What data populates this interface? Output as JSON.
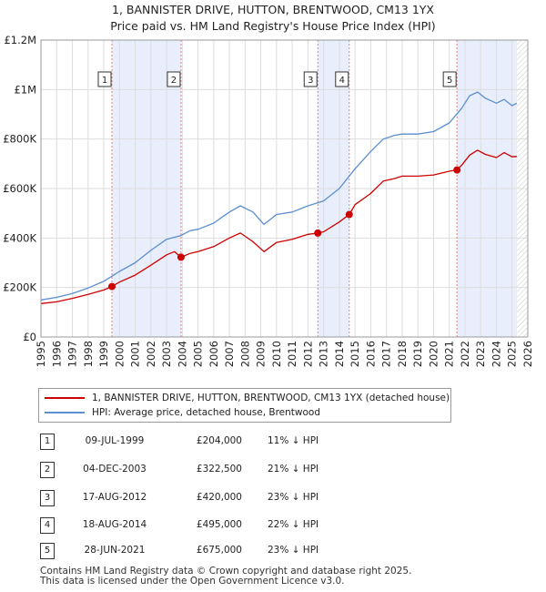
{
  "title_line1": "1, BANNISTER DRIVE, HUTTON, BRENTWOOD, CM13 1YX",
  "title_line2": "Price paid vs. HM Land Registry's House Price Index (HPI)",
  "colors": {
    "price_paid": "#cc0000",
    "hpi": "#5b8fd0",
    "band": "#e8eefb",
    "grid": "#dddddd",
    "vline": "#e08080"
  },
  "chart_data": {
    "type": "line",
    "title": "1, BANNISTER DRIVE, HUTTON, BRENTWOOD, CM13 1YX",
    "subtitle": "Price paid vs. HM Land Registry's House Price Index (HPI)",
    "xlabel": "",
    "ylabel": "",
    "xlim": [
      1995,
      2026
    ],
    "ylim": [
      0,
      1200000
    ],
    "y_tick_values": [
      0,
      200000,
      400000,
      600000,
      800000,
      1000000,
      1200000
    ],
    "y_tick_labels": [
      "£0",
      "£200K",
      "£400K",
      "£600K",
      "£800K",
      "£1M",
      "£1.2M"
    ],
    "x_tick_labels": [
      "1995",
      "1996",
      "1997",
      "1998",
      "1999",
      "2000",
      "2001",
      "2002",
      "2003",
      "2004",
      "2005",
      "2006",
      "2007",
      "2008",
      "2009",
      "2010",
      "2011",
      "2012",
      "2013",
      "2014",
      "2015",
      "2016",
      "2017",
      "2018",
      "2019",
      "2020",
      "2021",
      "2022",
      "2023",
      "2024",
      "2025",
      "2026"
    ],
    "grid": true,
    "shaded_bands": [
      {
        "start": 1999.52,
        "end": 2003.92
      },
      {
        "start": 2012.63,
        "end": 2014.63
      },
      {
        "start": 2021.49,
        "end": 2025.3
      }
    ],
    "hatched_after": 2025.3,
    "series": [
      {
        "name": "1, BANNISTER DRIVE, HUTTON, BRENTWOOD, CM13 1YX (detached house)",
        "x": [
          1995.0,
          1996.0,
          1997.0,
          1998.0,
          1999.0,
          1999.52,
          2000.0,
          2001.0,
          2002.0,
          2003.0,
          2003.5,
          2003.92,
          2004.5,
          2005.0,
          2006.0,
          2007.0,
          2007.7,
          2008.5,
          2009.2,
          2010.0,
          2011.0,
          2012.0,
          2012.63,
          2013.0,
          2014.0,
          2014.63,
          2015.0,
          2016.0,
          2016.8,
          2017.5,
          2018.0,
          2019.0,
          2020.0,
          2021.0,
          2021.49,
          2021.8,
          2022.3,
          2022.8,
          2023.3,
          2024.0,
          2024.5,
          2025.0,
          2025.3
        ],
        "values": [
          135000,
          142000,
          156000,
          172000,
          190000,
          204000,
          222000,
          250000,
          290000,
          332000,
          345000,
          322500,
          338000,
          345000,
          365000,
          400000,
          420000,
          385000,
          345000,
          382000,
          395000,
          415000,
          420000,
          425000,
          465000,
          495000,
          535000,
          580000,
          630000,
          640000,
          650000,
          650000,
          655000,
          670000,
          675000,
          695000,
          735000,
          755000,
          738000,
          725000,
          745000,
          728000,
          730000
        ]
      },
      {
        "name": "HPI: Average price, detached house, Brentwood",
        "x": [
          1995.0,
          1996.0,
          1997.0,
          1998.0,
          1999.0,
          2000.0,
          2001.0,
          2002.0,
          2003.0,
          2003.92,
          2004.5,
          2005.0,
          2006.0,
          2007.0,
          2007.7,
          2008.5,
          2009.2,
          2010.0,
          2011.0,
          2012.0,
          2013.0,
          2014.0,
          2015.0,
          2016.0,
          2016.8,
          2017.5,
          2018.0,
          2019.0,
          2020.0,
          2021.0,
          2021.8,
          2022.3,
          2022.8,
          2023.3,
          2024.0,
          2024.5,
          2025.0,
          2025.3
        ],
        "values": [
          150000,
          160000,
          176000,
          198000,
          225000,
          265000,
          300000,
          350000,
          395000,
          410000,
          430000,
          435000,
          460000,
          505000,
          530000,
          505000,
          455000,
          495000,
          505000,
          530000,
          550000,
          600000,
          680000,
          750000,
          800000,
          815000,
          820000,
          820000,
          830000,
          865000,
          925000,
          975000,
          990000,
          965000,
          945000,
          960000,
          935000,
          945000
        ]
      }
    ],
    "annotations": [
      {
        "label": "1",
        "x": 1999.52,
        "price": 204000
      },
      {
        "label": "2",
        "x": 2003.92,
        "price": 322500
      },
      {
        "label": "3",
        "x": 2012.63,
        "price": 420000
      },
      {
        "label": "4",
        "x": 2014.63,
        "price": 495000
      },
      {
        "label": "5",
        "x": 2021.49,
        "price": 675000
      }
    ]
  },
  "legend": {
    "price_paid_label": "1, BANNISTER DRIVE, HUTTON, BRENTWOOD, CM13 1YX (detached house)",
    "hpi_label": "HPI: Average price, detached house, Brentwood"
  },
  "transactions": [
    {
      "num": "1",
      "date": "09-JUL-1999",
      "price": "£204,000",
      "hpi": "11% ↓ HPI"
    },
    {
      "num": "2",
      "date": "04-DEC-2003",
      "price": "£322,500",
      "hpi": "21% ↓ HPI"
    },
    {
      "num": "3",
      "date": "17-AUG-2012",
      "price": "£420,000",
      "hpi": "23% ↓ HPI"
    },
    {
      "num": "4",
      "date": "18-AUG-2014",
      "price": "£495,000",
      "hpi": "22% ↓ HPI"
    },
    {
      "num": "5",
      "date": "28-JUN-2021",
      "price": "£675,000",
      "hpi": "23% ↓ HPI"
    }
  ],
  "footer_line1": "Contains HM Land Registry data © Crown copyright and database right 2025.",
  "footer_line2": "This data is licensed under the Open Government Licence v3.0."
}
